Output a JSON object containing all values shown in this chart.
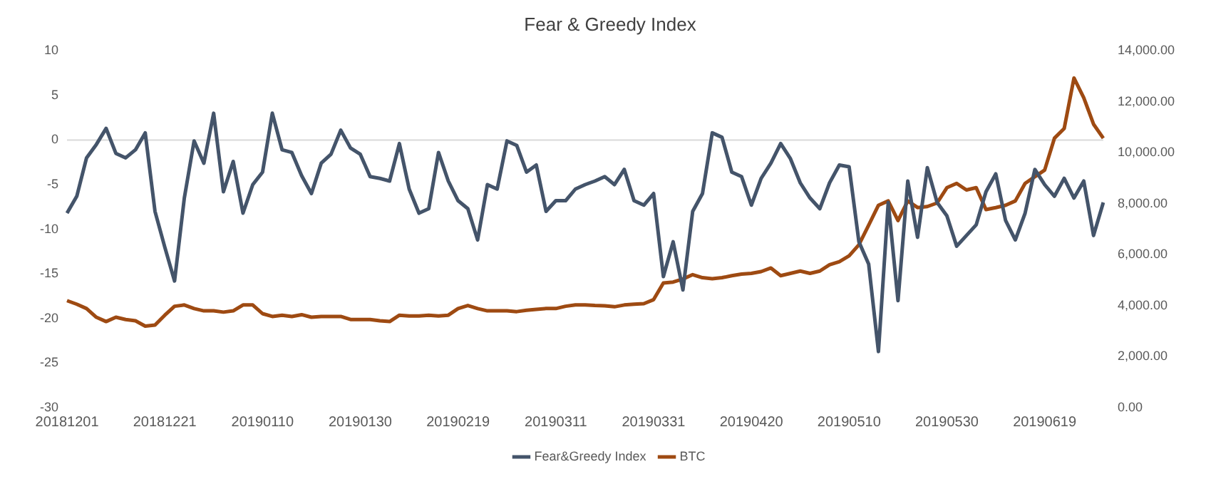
{
  "chart_data": {
    "type": "line",
    "title": "Fear & Greedy Index",
    "categories": [
      "20181201",
      null,
      null,
      null,
      null,
      null,
      null,
      null,
      null,
      null,
      "20181221",
      null,
      null,
      null,
      null,
      null,
      null,
      null,
      null,
      null,
      "20190110",
      null,
      null,
      null,
      null,
      null,
      null,
      null,
      null,
      null,
      "20190130",
      null,
      null,
      null,
      null,
      null,
      null,
      null,
      null,
      null,
      "20190219",
      null,
      null,
      null,
      null,
      null,
      null,
      null,
      null,
      null,
      "20190311",
      null,
      null,
      null,
      null,
      null,
      null,
      null,
      null,
      null,
      "20190331",
      null,
      null,
      null,
      null,
      null,
      null,
      null,
      null,
      null,
      "20190420",
      null,
      null,
      null,
      null,
      null,
      null,
      null,
      null,
      null,
      "20190510",
      null,
      null,
      null,
      null,
      null,
      null,
      null,
      null,
      null,
      "20190530",
      null,
      null,
      null,
      null,
      null,
      null,
      null,
      null,
      null,
      "20190619",
      null,
      null,
      null,
      null,
      null,
      null
    ],
    "series": [
      {
        "name": "Fear&Greedy Index",
        "color": "#44546a",
        "values": [
          -8.2,
          -6.3,
          -2,
          -0.5,
          1.3,
          -1.5,
          -2,
          -1.1,
          0.8,
          -8,
          -12,
          -15.8,
          -6.5,
          -0.1,
          -2.6,
          3,
          -5.8,
          -2.4,
          -8.2,
          -5,
          -3.6,
          3,
          -1.1,
          -1.4,
          -4,
          -6,
          -2.6,
          -1.6,
          1.1,
          -0.9,
          -1.6,
          -4.1,
          -4.3,
          -4.6,
          -0.4,
          -5.5,
          -8.2,
          -7.7,
          -1.4,
          -4.6,
          -6.8,
          -7.7,
          -11.2,
          -5,
          -5.5,
          -0.1,
          -0.6,
          -3.6,
          -2.8,
          -8,
          -6.8,
          -6.8,
          -5.5,
          -5,
          -4.6,
          -4.1,
          -5,
          -3.3,
          -6.8,
          -7.3,
          -6,
          -15.3,
          -11.4,
          -16.8,
          -8,
          -6,
          0.8,
          0.3,
          -3.6,
          -4.1,
          -7.3,
          -4.3,
          -2.6,
          -0.4,
          -2.1,
          -4.8,
          -6.5,
          -7.7,
          -4.8,
          -2.8,
          -3,
          -11.4,
          -13.9,
          -23.7,
          -7,
          -18,
          -4.6,
          -10.9,
          -3.1,
          -7,
          -8.5,
          -11.9,
          -10.7,
          -9.5,
          -5.8,
          -3.8,
          -9,
          -11.2,
          -8.2,
          -3.3,
          -5,
          -6.3,
          -4.3,
          -6.5,
          -4.6,
          -10.7,
          -7
        ]
      },
      {
        "name": "BTC",
        "color": "#9e4a12",
        "axis": "y2",
        "values": [
          4200,
          4060,
          3890,
          3550,
          3380,
          3550,
          3460,
          3410,
          3200,
          3240,
          3630,
          3980,
          4030,
          3890,
          3800,
          3800,
          3750,
          3800,
          4030,
          4030,
          3690,
          3580,
          3630,
          3580,
          3650,
          3550,
          3580,
          3580,
          3580,
          3460,
          3460,
          3460,
          3410,
          3380,
          3630,
          3600,
          3600,
          3630,
          3600,
          3630,
          3890,
          4010,
          3890,
          3800,
          3800,
          3800,
          3770,
          3820,
          3860,
          3890,
          3890,
          3980,
          4030,
          4030,
          4010,
          4000,
          3960,
          4030,
          4060,
          4080,
          4240,
          4890,
          4930,
          5050,
          5220,
          5100,
          5060,
          5100,
          5180,
          5240,
          5270,
          5340,
          5480,
          5180,
          5270,
          5360,
          5270,
          5360,
          5610,
          5730,
          5960,
          6390,
          7160,
          7940,
          8110,
          7340,
          8110,
          7850,
          7890,
          8030,
          8630,
          8800,
          8540,
          8630,
          7770,
          7850,
          7940,
          8110,
          8800,
          9060,
          9320,
          10570,
          10950,
          12930,
          12160,
          11120,
          10570
        ]
      }
    ],
    "ylim": [
      -30,
      10
    ],
    "yticks": [
      -30,
      -25,
      -20,
      -15,
      -10,
      -5,
      0,
      5,
      10
    ],
    "y2lim": [
      0,
      14000
    ],
    "y2ticks": [
      {
        "value": 0,
        "label": "0.00"
      },
      {
        "value": 2000,
        "label": "2,000.00"
      },
      {
        "value": 4000,
        "label": "4,000.00"
      },
      {
        "value": 6000,
        "label": "6,000.00"
      },
      {
        "value": 8000,
        "label": "8,000.00"
      },
      {
        "value": 10000,
        "label": "10,000.00"
      },
      {
        "value": 12000,
        "label": "12,000.00"
      },
      {
        "value": 14000,
        "label": "14,000.00"
      }
    ],
    "ref_lines": [
      {
        "axis": "y",
        "value": 0,
        "color": "#d9d9d9"
      }
    ],
    "grid": false,
    "legend": "bottom",
    "marker": "none",
    "line_style": "solid"
  }
}
